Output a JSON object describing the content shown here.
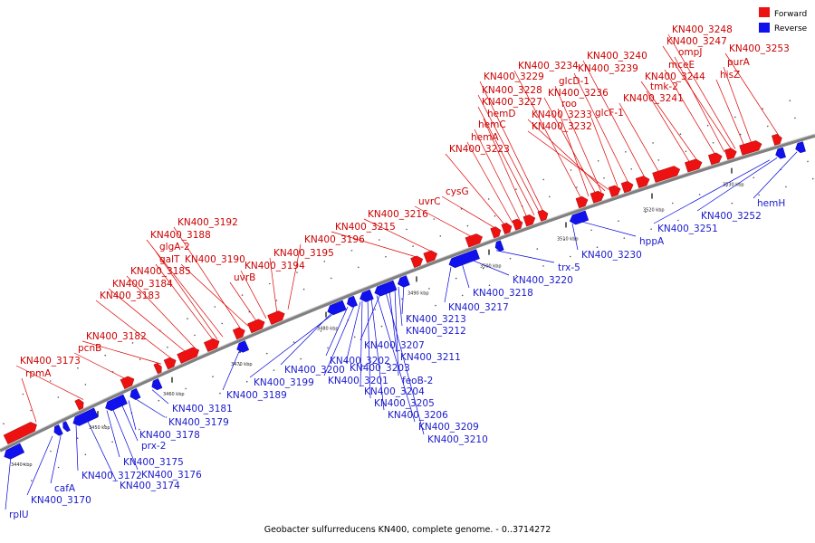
{
  "legend": {
    "forward_label": "Forward",
    "reverse_label": "Reverse",
    "forward_color": "#ee1111",
    "reverse_color": "#1111ee"
  },
  "caption": "Geobacter sulfurreducens KN400, complete genome. - 0..3714272",
  "ticks": [
    "3440 kbp",
    "3450 kbp",
    "3460 kbp",
    "3470 kbp",
    "3480 kbp",
    "3490 kbp",
    "3500 kbp",
    "3510 kbp",
    "3520 kbp",
    "3530 kbp"
  ],
  "forward_labels": [
    "KN400_3173",
    "rpmA",
    "pcnB",
    "KN400_3182",
    "KN400_3183",
    "KN400_3184",
    "KN400_3185",
    "galT",
    "glgA-2",
    "KN400_3188",
    "KN400_3192",
    "KN400_3190",
    "uvrB",
    "KN400_3194",
    "KN400_3195",
    "KN400_3196",
    "KN400_3215",
    "KN400_3216",
    "uvrC",
    "cysG",
    "KN400_3223",
    "hemA",
    "hemC",
    "hemD",
    "KN400_3227",
    "KN400_3228",
    "KN400_3229",
    "KN400_3234",
    "roo",
    "KN400_3236",
    "glcD-1",
    "KN400_3233",
    "KN400_3232",
    "glcF-1",
    "KN400_3239",
    "KN400_3240",
    "KN400_3241",
    "tmk-2",
    "KN400_3244",
    "mceE",
    "ompJ",
    "KN400_3247",
    "KN400_3248",
    "hisZ",
    "purA",
    "KN400_3253"
  ],
  "reverse_labels": [
    "rplU",
    "KN400_3170",
    "cafA",
    "KN400_3172",
    "KN400_3174",
    "KN400_3175",
    "KN400_3176",
    "prx-2",
    "KN400_3178",
    "KN400_3179",
    "KN400_3181",
    "KN400_3189",
    "KN400_3199",
    "KN400_3200",
    "KN400_3201",
    "KN400_3202",
    "KN400_3203",
    "KN400_3204",
    "KN400_3205",
    "KN400_3206",
    "KN400_3207",
    "KN400_3209",
    "KN400_3210",
    "KN400_3211",
    "feoB-2",
    "KN400_3212",
    "KN400_3213",
    "KN400_3217",
    "KN400_3218",
    "KN400_3220",
    "trx-5",
    "KN400_3230",
    "hppA",
    "KN400_3251",
    "KN400_3252",
    "hemH"
  ]
}
